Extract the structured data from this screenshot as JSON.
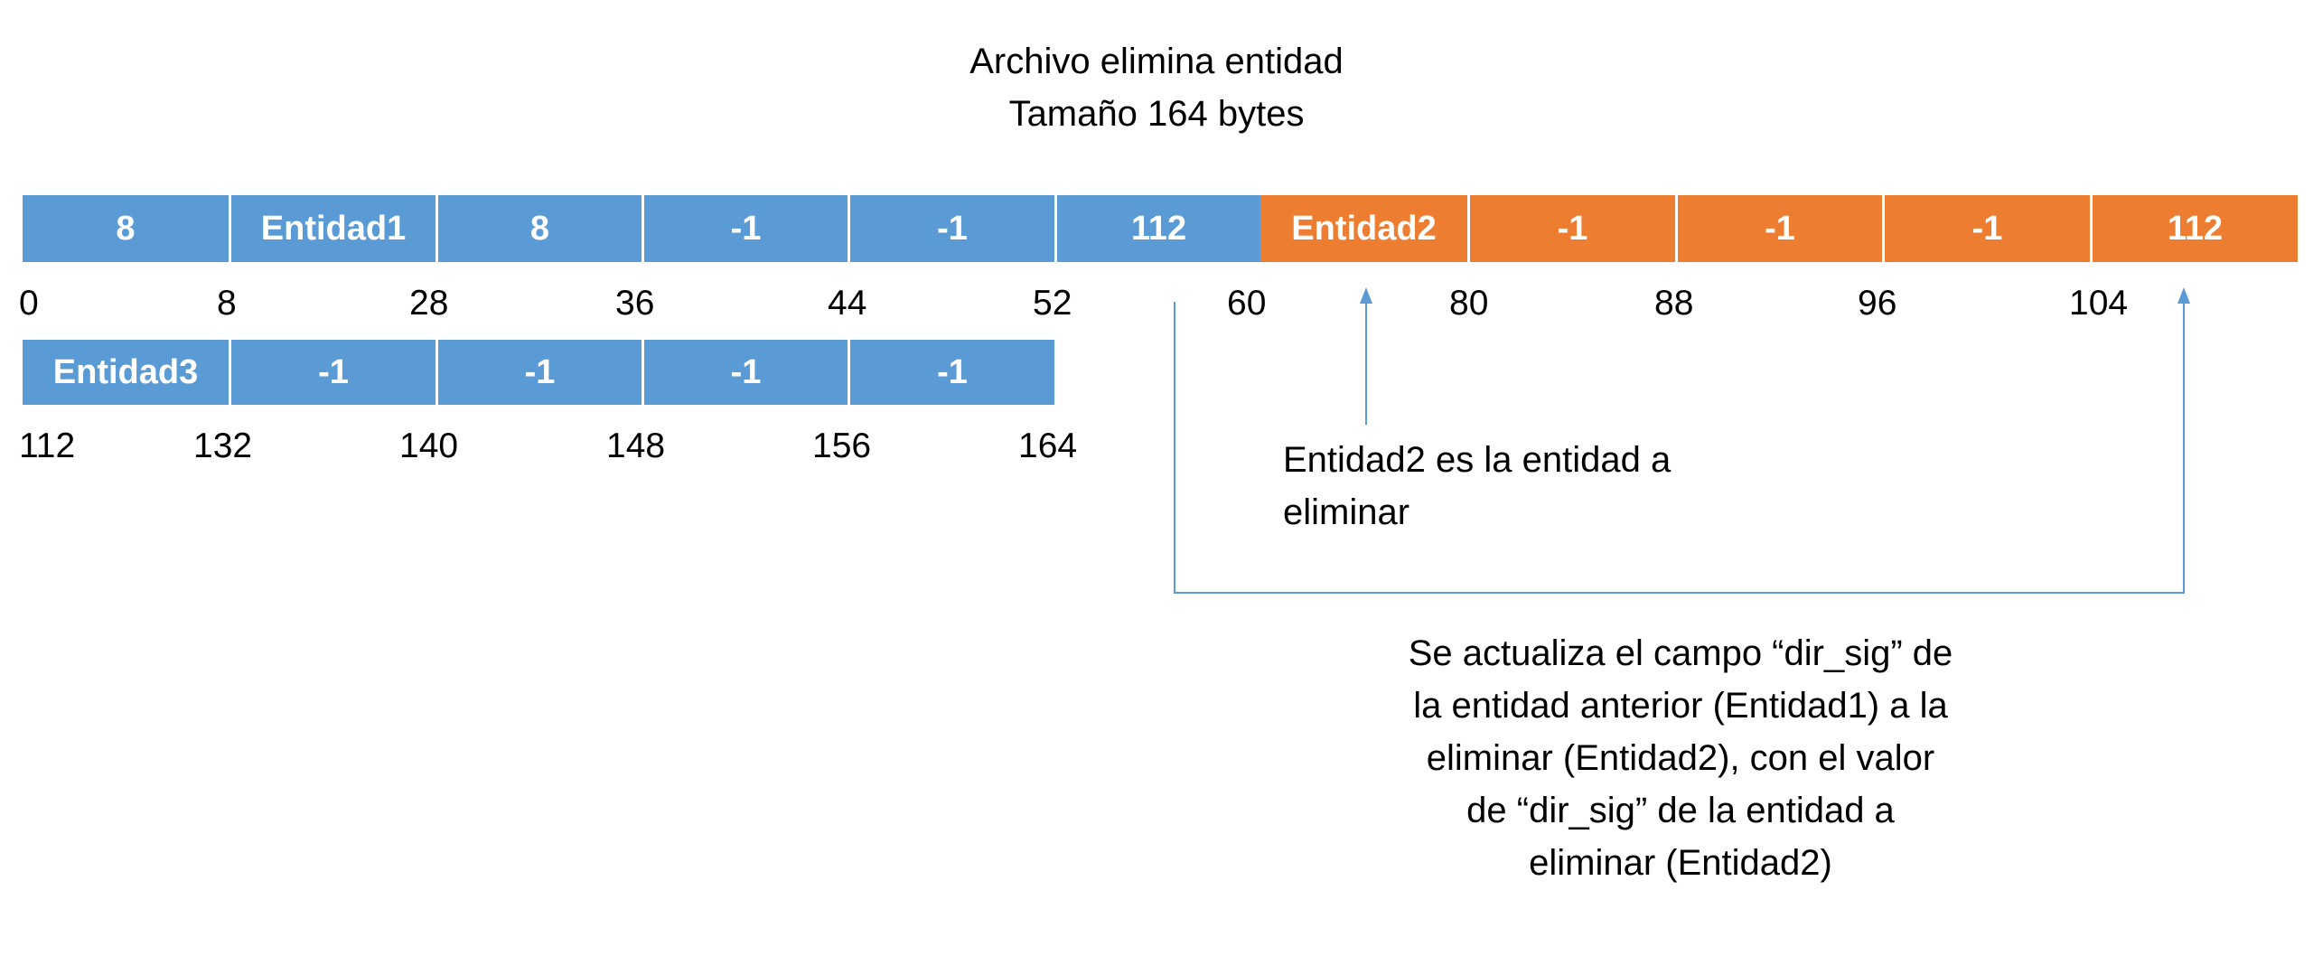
{
  "title": [
    "Archivo elimina entidad",
    "Tamaño 164 bytes"
  ],
  "colors": {
    "blue": "#5b9bd5",
    "orange": "#ed7d31",
    "connector": "#5b9bd5"
  },
  "row1": {
    "cells": [
      {
        "label": "8",
        "color": "blue"
      },
      {
        "label": "Entidad1",
        "color": "blue"
      },
      {
        "label": "8",
        "color": "blue"
      },
      {
        "label": "-1",
        "color": "blue"
      },
      {
        "label": "-1",
        "color": "blue"
      },
      {
        "label": "112",
        "color": "blue"
      },
      {
        "label": "Entidad2",
        "color": "orange"
      },
      {
        "label": "-1",
        "color": "orange"
      },
      {
        "label": "-1",
        "color": "orange"
      },
      {
        "label": "-1",
        "color": "orange"
      },
      {
        "label": "112",
        "color": "orange"
      }
    ],
    "offsets": [
      "0",
      "8",
      "28",
      "36",
      "44",
      "52",
      "60",
      "80",
      "88",
      "96",
      "104"
    ]
  },
  "row2": {
    "cells": [
      {
        "label": "Entidad3",
        "color": "blue"
      },
      {
        "label": "-1",
        "color": "blue"
      },
      {
        "label": "-1",
        "color": "blue"
      },
      {
        "label": "-1",
        "color": "blue"
      },
      {
        "label": "-1",
        "color": "blue"
      }
    ],
    "offsets": [
      "112",
      "132",
      "140",
      "148",
      "156",
      "164"
    ]
  },
  "note_delete": [
    "Entidad2 es la entidad a",
    "eliminar"
  ],
  "note_update": [
    "Se actualiza el campo “dir_sig” de",
    "la entidad anterior (Entidad1) a la",
    "eliminar (Entidad2), con el valor",
    "de “dir_sig” de la entidad a",
    "eliminar (Entidad2)"
  ]
}
